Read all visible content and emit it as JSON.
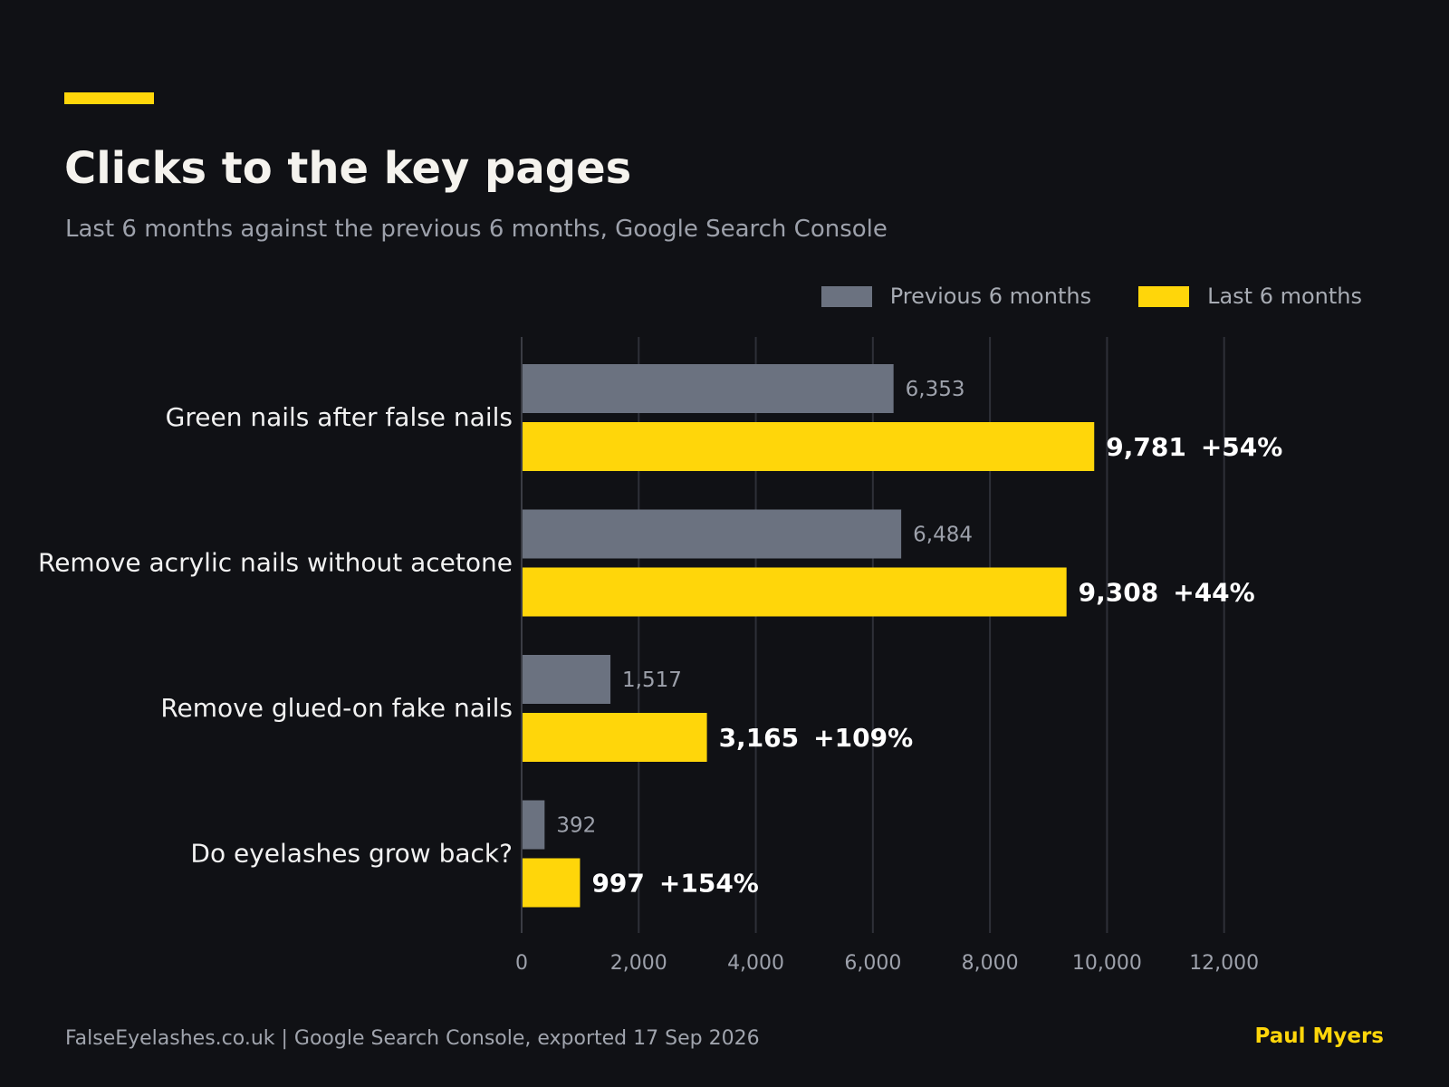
{
  "header": {
    "title": "Clicks to the key pages",
    "subtitle": "Last 6 months against the previous 6 months, Google Search Console"
  },
  "legend": {
    "previous_label": "Previous 6 months",
    "last_label": "Last 6 months"
  },
  "colors": {
    "previous": "#6b7280",
    "last": "#ffd60a",
    "accent": "#ffd60a",
    "gridline": "#2e3038"
  },
  "footer": {
    "source": "FalseEyelashes.co.uk  |  Google Search Console, exported 17 Sep 2026",
    "author": "Paul Myers"
  },
  "chart_data": {
    "type": "bar",
    "orientation": "horizontal",
    "categories": [
      "Green nails after false nails",
      "Remove acrylic nails without acetone",
      "Remove glued-on fake nails",
      "Do eyelashes grow back?"
    ],
    "series": [
      {
        "name": "Previous 6 months",
        "values": [
          6353,
          6484,
          1517,
          392
        ],
        "labels": [
          "6,353",
          "6,484",
          "1,517",
          "392"
        ]
      },
      {
        "name": "Last 6 months",
        "values": [
          9781,
          9308,
          3165,
          997
        ],
        "labels": [
          "9,781",
          "9,308",
          "3,165",
          "997"
        ],
        "change_labels": [
          "+54%",
          "+44%",
          "+109%",
          "+154%"
        ]
      }
    ],
    "xlim": [
      0,
      12500
    ],
    "xticks": [
      0,
      2000,
      4000,
      6000,
      8000,
      10000,
      12000
    ],
    "xtick_labels": [
      "0",
      "2,000",
      "4,000",
      "6,000",
      "8,000",
      "10,000",
      "12,000"
    ],
    "grid": "vertical",
    "legend_position": "top-right"
  }
}
